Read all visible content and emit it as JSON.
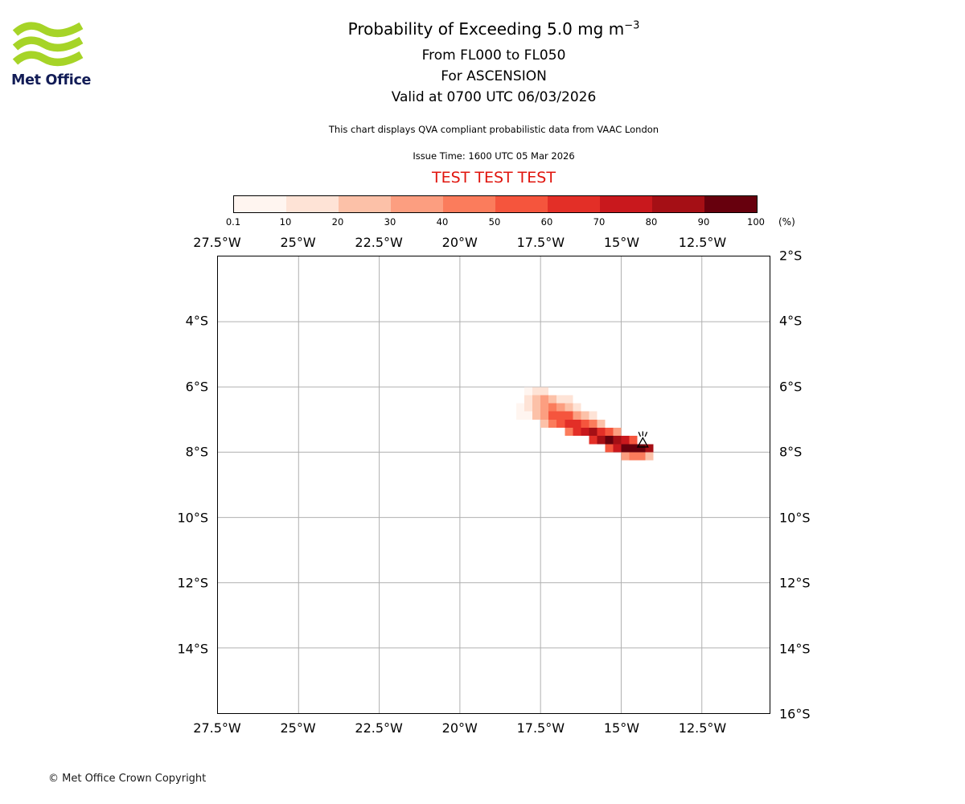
{
  "logo": {
    "text": "Met Office",
    "wave_color": "#a6d427",
    "text_color": "#121c56"
  },
  "header": {
    "title_main": "Probability of Exceeding 5.0 mg m",
    "title_sup": "−3",
    "subtitle1": "From FL000 to FL050",
    "subtitle2": "For ASCENSION",
    "subtitle3": "Valid at 0700 UTC 06/03/2026",
    "note": "This chart displays QVA compliant probabilistic data from VAAC London",
    "issue_time": "Issue Time: 1600 UTC 05 Mar 2026",
    "test_banner": "TEST TEST TEST",
    "test_color": "#e0150e"
  },
  "footer": {
    "copyright": "© Met Office Crown Copyright"
  },
  "chart_data": {
    "type": "heatmap",
    "title": "Probability of Exceeding 5.0 mg m⁻³",
    "subtitles": [
      "From FL000 to FL050",
      "For ASCENSION",
      "Valid at 0700 UTC 06/03/2026"
    ],
    "colorbar": {
      "boundaries": [
        0.1,
        10,
        20,
        30,
        40,
        50,
        60,
        70,
        80,
        90,
        100
      ],
      "colors": [
        "#fff5f0",
        "#fee3d6",
        "#fcc1a8",
        "#fc9e80",
        "#fb7c5c",
        "#f5553d",
        "#e32f27",
        "#c9181d",
        "#a50f15",
        "#67000d"
      ],
      "unit_label": "(%)"
    },
    "map": {
      "lon_min": -27.5,
      "lon_max": -10.4,
      "lat_min_s": 2,
      "lat_max_s": 16,
      "x_ticks": [
        {
          "lon": -27.5,
          "label": "27.5°W"
        },
        {
          "lon": -25,
          "label": "25°W"
        },
        {
          "lon": -22.5,
          "label": "22.5°W"
        },
        {
          "lon": -20,
          "label": "20°W"
        },
        {
          "lon": -17.5,
          "label": "17.5°W"
        },
        {
          "lon": -15,
          "label": "15°W"
        },
        {
          "lon": -12.5,
          "label": "12.5°W"
        }
      ],
      "y_ticks_left": [
        {
          "lat_s": 4,
          "label": "4°S"
        },
        {
          "lat_s": 6,
          "label": "6°S"
        },
        {
          "lat_s": 8,
          "label": "8°S"
        },
        {
          "lat_s": 10,
          "label": "10°S"
        },
        {
          "lat_s": 12,
          "label": "12°S"
        },
        {
          "lat_s": 14,
          "label": "14°S"
        }
      ],
      "y_ticks_right": [
        {
          "lat_s": 2,
          "label": "2°S"
        },
        {
          "lat_s": 4,
          "label": "4°S"
        },
        {
          "lat_s": 6,
          "label": "6°S"
        },
        {
          "lat_s": 8,
          "label": "8°S"
        },
        {
          "lat_s": 10,
          "label": "10°S"
        },
        {
          "lat_s": 12,
          "label": "12°S"
        },
        {
          "lat_s": 14,
          "label": "14°S"
        },
        {
          "lat_s": 16,
          "label": "16°S"
        }
      ],
      "grid_lons": [
        -25,
        -22.5,
        -20,
        -17.5,
        -15,
        -12.5
      ],
      "grid_lats": [
        4,
        6,
        8,
        10,
        12,
        14
      ],
      "grid_color": "#b0b0b0"
    },
    "cell_size_deg": 0.25,
    "cells": [
      [
        -18.0,
        6.0,
        8
      ],
      [
        -17.75,
        6.0,
        15
      ],
      [
        -17.5,
        6.0,
        12
      ],
      [
        -18.0,
        6.25,
        10
      ],
      [
        -17.75,
        6.25,
        22
      ],
      [
        -17.5,
        6.25,
        30
      ],
      [
        -17.25,
        6.25,
        22
      ],
      [
        -17.0,
        6.25,
        15
      ],
      [
        -16.75,
        6.25,
        10
      ],
      [
        -18.25,
        6.5,
        4
      ],
      [
        -18.0,
        6.5,
        12
      ],
      [
        -17.75,
        6.5,
        28
      ],
      [
        -17.5,
        6.5,
        38
      ],
      [
        -17.25,
        6.5,
        40
      ],
      [
        -17.0,
        6.5,
        35
      ],
      [
        -16.75,
        6.5,
        25
      ],
      [
        -16.5,
        6.5,
        15
      ],
      [
        -18.25,
        6.75,
        3
      ],
      [
        -18.0,
        6.75,
        6
      ],
      [
        -17.75,
        6.75,
        20
      ],
      [
        -17.5,
        6.75,
        38
      ],
      [
        -17.25,
        6.75,
        50
      ],
      [
        -17.0,
        6.75,
        55
      ],
      [
        -16.75,
        6.75,
        50
      ],
      [
        -16.5,
        6.75,
        38
      ],
      [
        -16.25,
        6.75,
        22
      ],
      [
        -16.0,
        6.75,
        12
      ],
      [
        -17.5,
        7.0,
        22
      ],
      [
        -17.25,
        7.0,
        40
      ],
      [
        -17.0,
        7.0,
        58
      ],
      [
        -16.75,
        7.0,
        68
      ],
      [
        -16.5,
        7.0,
        65
      ],
      [
        -16.25,
        7.0,
        55
      ],
      [
        -16.0,
        7.0,
        40
      ],
      [
        -15.75,
        7.0,
        25
      ],
      [
        -16.75,
        7.25,
        45
      ],
      [
        -16.5,
        7.25,
        62
      ],
      [
        -16.25,
        7.25,
        75
      ],
      [
        -16.0,
        7.25,
        80
      ],
      [
        -15.75,
        7.25,
        68
      ],
      [
        -15.5,
        7.25,
        50
      ],
      [
        -15.25,
        7.25,
        30
      ],
      [
        -16.0,
        7.5,
        62
      ],
      [
        -15.75,
        7.5,
        80
      ],
      [
        -15.5,
        7.5,
        90
      ],
      [
        -15.25,
        7.5,
        88
      ],
      [
        -15.0,
        7.5,
        72
      ],
      [
        -14.75,
        7.5,
        50
      ],
      [
        -15.5,
        7.75,
        55
      ],
      [
        -15.25,
        7.75,
        75
      ],
      [
        -15.0,
        7.75,
        92
      ],
      [
        -14.75,
        7.75,
        97
      ],
      [
        -14.5,
        7.75,
        95
      ],
      [
        -14.25,
        7.75,
        80
      ],
      [
        -15.0,
        8.0,
        35
      ],
      [
        -14.75,
        8.0,
        45
      ],
      [
        -14.5,
        8.0,
        40
      ],
      [
        -14.25,
        8.0,
        25
      ]
    ],
    "volcano": {
      "lon": -14.33,
      "lat_s": 7.72
    }
  }
}
